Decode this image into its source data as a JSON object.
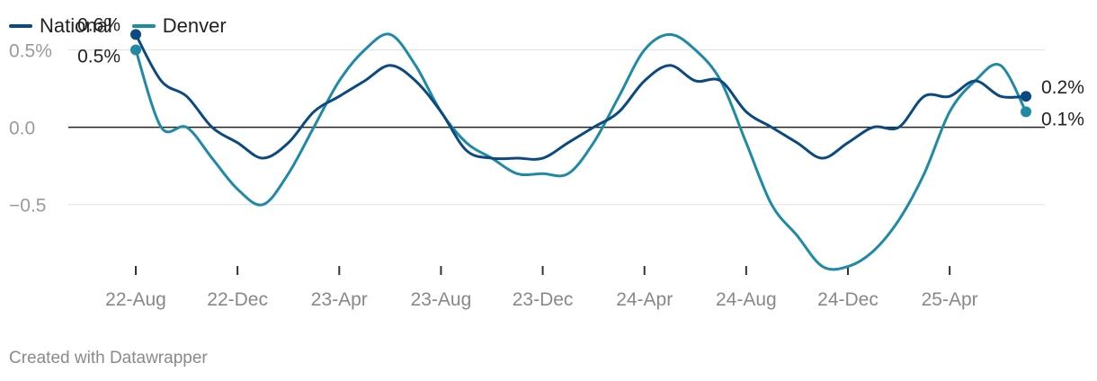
{
  "chart_data": {
    "type": "line",
    "title": "",
    "xlabel": "",
    "ylabel": "",
    "x": [
      "2022-08",
      "2022-09",
      "2022-10",
      "2022-11",
      "2022-12",
      "2023-01",
      "2023-02",
      "2023-03",
      "2023-04",
      "2023-05",
      "2023-06",
      "2023-07",
      "2023-08",
      "2023-09",
      "2023-10",
      "2023-11",
      "2023-12",
      "2024-01",
      "2024-02",
      "2024-03",
      "2024-04",
      "2024-05",
      "2024-06",
      "2024-07",
      "2024-08",
      "2024-09",
      "2024-10",
      "2024-11",
      "2024-12",
      "2025-01",
      "2025-02",
      "2025-03",
      "2025-04",
      "2025-05",
      "2025-06",
      "2025-07"
    ],
    "x_ticks": [
      "22-Aug",
      "22-Dec",
      "23-Apr",
      "23-Aug",
      "23-Dec",
      "24-Apr",
      "24-Aug",
      "24-Dec",
      "25-Apr"
    ],
    "x_tick_positions": [
      "2022-08",
      "2022-12",
      "2023-04",
      "2023-08",
      "2023-12",
      "2024-04",
      "2024-08",
      "2024-12",
      "2025-04"
    ],
    "y_ticks": [
      {
        "value": 0.5,
        "label": "0.5%"
      },
      {
        "value": 0.0,
        "label": "0.0"
      },
      {
        "value": -0.5,
        "label": "−0.5"
      }
    ],
    "ylim": [
      -0.92,
      0.66
    ],
    "grid": true,
    "legend_position": "top-left",
    "series": [
      {
        "name": "National",
        "color": "#0b4a80",
        "values": [
          0.6,
          0.3,
          0.2,
          0.0,
          -0.1,
          -0.2,
          -0.1,
          0.1,
          0.2,
          0.3,
          0.4,
          0.3,
          0.1,
          -0.15,
          -0.2,
          -0.2,
          -0.2,
          -0.1,
          0.0,
          0.1,
          0.3,
          0.4,
          0.3,
          0.3,
          0.1,
          0.0,
          -0.1,
          -0.2,
          -0.1,
          0.0,
          0.0,
          0.2,
          0.2,
          0.3,
          0.2,
          0.2
        ],
        "end_labels": {
          "first": "0.6%",
          "last": "0.2%"
        }
      },
      {
        "name": "Denver",
        "color": "#1f8aa6",
        "values": [
          0.5,
          0.0,
          0.0,
          -0.2,
          -0.4,
          -0.5,
          -0.3,
          0.0,
          0.3,
          0.5,
          0.6,
          0.4,
          0.1,
          -0.1,
          -0.2,
          -0.3,
          -0.3,
          -0.3,
          -0.1,
          0.2,
          0.5,
          0.6,
          0.5,
          0.3,
          -0.1,
          -0.5,
          -0.7,
          -0.9,
          -0.9,
          -0.8,
          -0.6,
          -0.3,
          0.1,
          0.3,
          0.4,
          0.1
        ],
        "end_labels": {
          "first": "0.5%",
          "last": "0.1%"
        }
      }
    ]
  },
  "footer": {
    "credit": "Created with Datawrapper"
  }
}
